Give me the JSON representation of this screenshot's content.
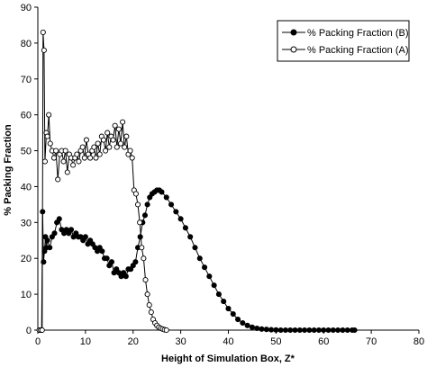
{
  "chart_data": {
    "type": "scatter",
    "xlabel": "Height of Simulation Box, Z*",
    "ylabel": "% Packing Fraction",
    "xlim": [
      0,
      80
    ],
    "ylim": [
      0,
      90
    ],
    "xticks": [
      0,
      10,
      20,
      30,
      40,
      50,
      60,
      70,
      80
    ],
    "yticks": [
      0,
      10,
      20,
      30,
      40,
      50,
      60,
      70,
      80,
      90
    ],
    "grid": false,
    "legend_position": "top-right",
    "colors": {
      "B": "#000000",
      "A_fill": "#ffffff",
      "A_stroke": "#000000"
    },
    "series": [
      {
        "name": "% Packing Fraction (B)",
        "marker": "filled-circle",
        "x": [
          0.5,
          0.8,
          1.0,
          1.2,
          1.4,
          1.6,
          1.8,
          2.0,
          2.5,
          3.0,
          3.5,
          4.0,
          4.5,
          5.0,
          5.5,
          6.0,
          6.5,
          7.0,
          7.5,
          8.0,
          8.5,
          9.0,
          9.5,
          10.0,
          10.5,
          11.0,
          11.5,
          12.0,
          12.5,
          13.0,
          13.5,
          14.0,
          14.5,
          15.0,
          15.5,
          16.0,
          16.5,
          17.0,
          17.5,
          18.0,
          18.5,
          19.0,
          19.5,
          20.0,
          20.5,
          21.0,
          21.5,
          22.0,
          22.5,
          23.0,
          23.5,
          24.0,
          24.5,
          25.0,
          25.5,
          26.0,
          27.0,
          28.0,
          29.0,
          30.0,
          31.0,
          32.0,
          33.0,
          34.0,
          35.0,
          36.0,
          37.0,
          38.0,
          39.0,
          40.0,
          41.0,
          42.0,
          43.0,
          44.0,
          45.0,
          46.0,
          47.0,
          48.0,
          49.0,
          50.0,
          51.0,
          52.0,
          53.0,
          54.0,
          55.0,
          56.0,
          57.0,
          58.0,
          59.0,
          60.0,
          61.0,
          62.0,
          63.0,
          64.0,
          65.0,
          66.0,
          66.5
        ],
        "y": [
          0,
          0,
          33,
          19,
          22,
          26,
          23,
          25,
          23,
          26,
          27,
          30,
          31,
          28,
          27,
          28,
          27,
          28,
          26,
          27,
          26,
          26,
          25,
          26,
          24,
          25,
          24,
          23,
          22,
          23,
          22,
          20,
          20,
          18,
          19,
          16,
          17,
          16,
          15,
          16,
          15,
          17,
          17,
          18,
          19,
          23,
          26,
          30,
          32,
          35,
          37,
          38,
          38.5,
          39,
          39,
          38.5,
          37,
          35,
          33,
          31,
          28.5,
          26,
          23,
          20,
          17.5,
          15,
          12.5,
          10,
          8,
          6,
          4.5,
          3,
          2,
          1.3,
          0.8,
          0.5,
          0.3,
          0.2,
          0.1,
          0.05,
          0,
          0,
          0,
          0,
          0,
          0,
          0,
          0,
          0,
          0,
          0,
          0,
          0,
          0,
          0,
          0,
          0
        ]
      },
      {
        "name": "% Packing Fraction (A)",
        "marker": "open-circle",
        "x": [
          0.3,
          0.6,
          0.9,
          1.1,
          1.3,
          1.5,
          1.8,
          2.0,
          2.3,
          2.6,
          3.0,
          3.4,
          3.8,
          4.2,
          4.6,
          5.0,
          5.4,
          5.8,
          6.2,
          6.6,
          7.0,
          7.4,
          7.8,
          8.2,
          8.6,
          9.0,
          9.4,
          9.8,
          10.2,
          10.6,
          11.0,
          11.4,
          11.8,
          12.2,
          12.6,
          13.0,
          13.4,
          13.8,
          14.2,
          14.6,
          15.0,
          15.4,
          15.8,
          16.2,
          16.6,
          17.0,
          17.4,
          17.8,
          18.2,
          18.6,
          19.0,
          19.4,
          19.8,
          20.2,
          20.6,
          21.0,
          21.4,
          21.8,
          22.2,
          22.6,
          23.0,
          23.4,
          23.8,
          24.2,
          24.6,
          25.0,
          25.4,
          25.8,
          26.2,
          26.6,
          27.0
        ],
        "y": [
          0,
          0,
          0,
          83,
          78,
          47,
          55,
          54,
          60,
          52,
          50,
          48,
          50,
          42,
          49,
          50,
          47,
          50,
          44,
          49,
          48,
          46,
          48,
          49,
          47,
          50,
          51,
          48,
          53,
          49,
          48,
          50,
          51,
          48,
          52,
          49,
          54,
          53,
          50,
          55,
          51,
          54,
          53,
          57,
          51,
          56,
          52,
          58,
          51,
          54,
          49,
          50,
          48,
          39,
          38,
          35,
          30,
          23,
          20,
          14,
          10,
          7,
          5,
          3,
          2,
          1.3,
          0.8,
          0.5,
          0.3,
          0.1,
          0
        ]
      }
    ]
  }
}
